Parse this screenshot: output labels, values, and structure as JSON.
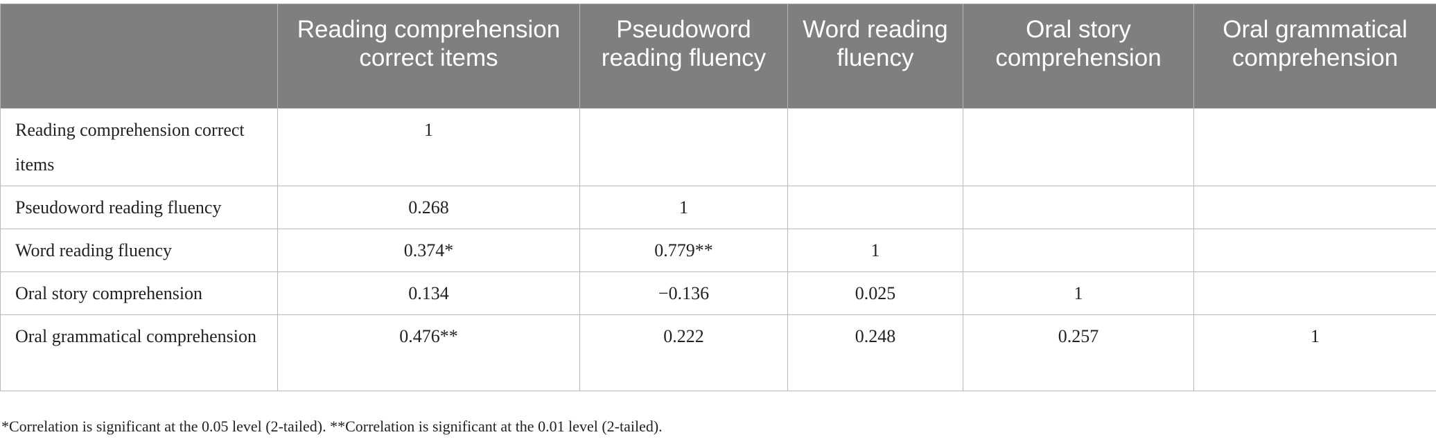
{
  "table": {
    "header": [
      "Reading comprehension correct items",
      "Pseudoword reading fluency",
      "Word reading fluency",
      "Oral story comprehension",
      "Oral grammatical comprehension"
    ],
    "rows": [
      {
        "label": "Reading comprehension correct items",
        "cells": [
          "1"
        ]
      },
      {
        "label": "Pseudoword reading fluency",
        "cells": [
          "0.268",
          "1"
        ]
      },
      {
        "label": "Word reading fluency",
        "cells": [
          "0.374*",
          "0.779**",
          "1"
        ]
      },
      {
        "label": "Oral story comprehension",
        "cells": [
          "0.134",
          "−0.136",
          "0.025",
          "1"
        ]
      },
      {
        "label": "Oral grammatical comprehension",
        "cells": [
          "0.476**",
          "0.222",
          "0.248",
          "0.257",
          "1"
        ]
      }
    ]
  },
  "footnote": "*Correlation is significant at the 0.05 level (2-tailed). **Correlation is significant at the 0.01 level (2-tailed)."
}
